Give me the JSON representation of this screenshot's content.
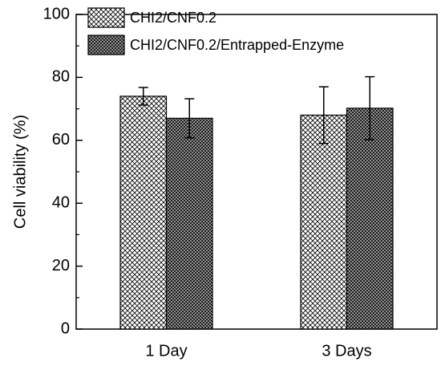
{
  "chart_data": {
    "type": "bar",
    "ylabel": "Cell viability (%)",
    "categories": [
      "1 Day",
      "3 Days"
    ],
    "series": [
      {
        "name": "CHI2/CNF0.2",
        "color": "#ffffff",
        "values": [
          74,
          68
        ],
        "errors": [
          2.8,
          9
        ]
      },
      {
        "name": "CHI2/CNF0.2/Entrapped-Enzyme",
        "color": "#b0b0b0",
        "values": [
          67,
          70.2
        ],
        "errors": [
          6.2,
          10
        ]
      }
    ],
    "ylim": [
      0,
      100
    ],
    "yticks": [
      0,
      20,
      40,
      60,
      80,
      100
    ],
    "yminorticks": [
      10,
      30,
      50,
      70,
      90
    ],
    "legend": "upper left"
  }
}
